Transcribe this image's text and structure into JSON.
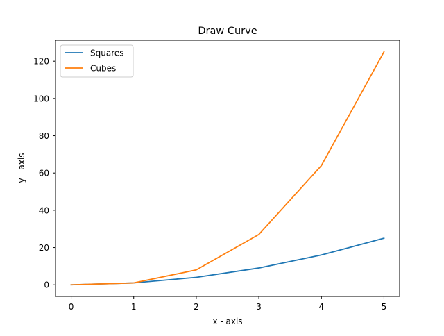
{
  "chart_data": {
    "type": "line",
    "title": "Draw Curve",
    "xlabel": "x - axis",
    "ylabel": "y - axis",
    "x": [
      0,
      1,
      2,
      3,
      4,
      5
    ],
    "xlim": [
      -0.25,
      5.25
    ],
    "ylim": [
      -6.25,
      131.25
    ],
    "xticks": [
      0,
      1,
      2,
      3,
      4,
      5
    ],
    "yticks": [
      0,
      20,
      40,
      60,
      80,
      100,
      120
    ],
    "grid": false,
    "legend_position": "top-left",
    "series": [
      {
        "name": "Squares",
        "values": [
          0,
          1,
          4,
          9,
          16,
          25
        ],
        "color": "#1f77b4"
      },
      {
        "name": "Cubes",
        "values": [
          0,
          1,
          8,
          27,
          64,
          125
        ],
        "color": "#ff7f0e"
      }
    ]
  }
}
